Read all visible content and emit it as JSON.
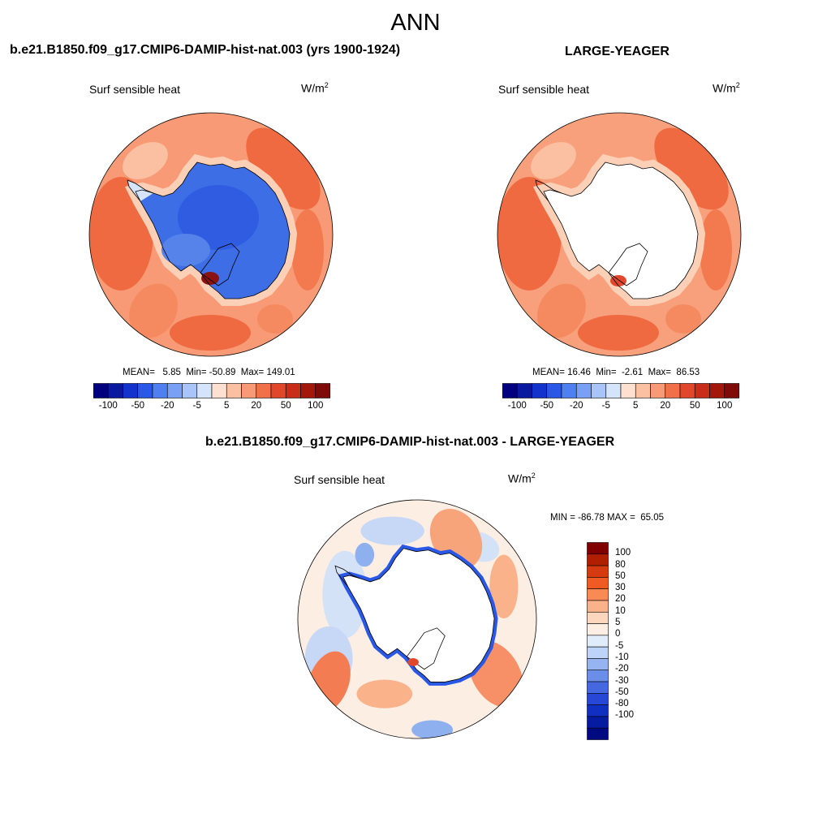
{
  "figure": {
    "title": "ANN",
    "panels": [
      {
        "case_title": "b.e21.B1850.f09_g17.CMIP6-DAMIP-hist-nat.003 (yrs 1900-1924)",
        "variable": "Surf sensible heat",
        "units_base": "W/m",
        "units_exp": "2",
        "stats": {
          "mean_label": "MEAN=",
          "mean": "5.85",
          "min_label": "Min=",
          "min": "-50.89",
          "max_label": "Max=",
          "max": "149.01"
        },
        "antarctica_fill": "model"
      },
      {
        "case_title": "LARGE-YEAGER",
        "variable": "Surf sensible heat",
        "units_base": "W/m",
        "units_exp": "2",
        "stats": {
          "mean_label": "MEAN=",
          "mean": "16.46",
          "min_label": "Min=",
          "min": "-2.61",
          "max_label": "Max=",
          "max": "86.53"
        },
        "antarctica_fill": "blank"
      }
    ],
    "colorbar": {
      "colors": [
        "#00007f",
        "#0a1aa0",
        "#1433cc",
        "#2a58e6",
        "#4f7ff0",
        "#7aa0f5",
        "#a8c4f8",
        "#d4e4fa",
        "#fde0cf",
        "#fbc0a2",
        "#f79a75",
        "#f0704a",
        "#e0472b",
        "#c72d18",
        "#a4180c",
        "#7e0b07"
      ],
      "tick_labels": [
        "-100",
        "-50",
        "-20",
        "-5",
        "5",
        "20",
        "50",
        "100"
      ]
    },
    "difference": {
      "title": "b.e21.B1850.f09_g17.CMIP6-DAMIP-hist-nat.003 - LARGE-YEAGER",
      "variable": "Surf sensible heat",
      "units_base": "W/m",
      "units_exp": "2",
      "min_max": "MIN = -86.78 MAX =  65.05",
      "colorbar": {
        "colors": [
          "#800000",
          "#b02000",
          "#d63a10",
          "#f05a25",
          "#f78a55",
          "#fab28a",
          "#fdd7bd",
          "#fdeee3",
          "#e1ecfa",
          "#bdd3f7",
          "#95b4f0",
          "#6b8ee9",
          "#4568e0",
          "#2748d6",
          "#1030c2",
          "#051ca0",
          "#000a80"
        ],
        "tick_labels": [
          "100",
          "80",
          "50",
          "30",
          "20",
          "10",
          "5",
          "0",
          "-5",
          "-10",
          "-20",
          "-30",
          "-50",
          "-80",
          "-100"
        ]
      }
    }
  }
}
